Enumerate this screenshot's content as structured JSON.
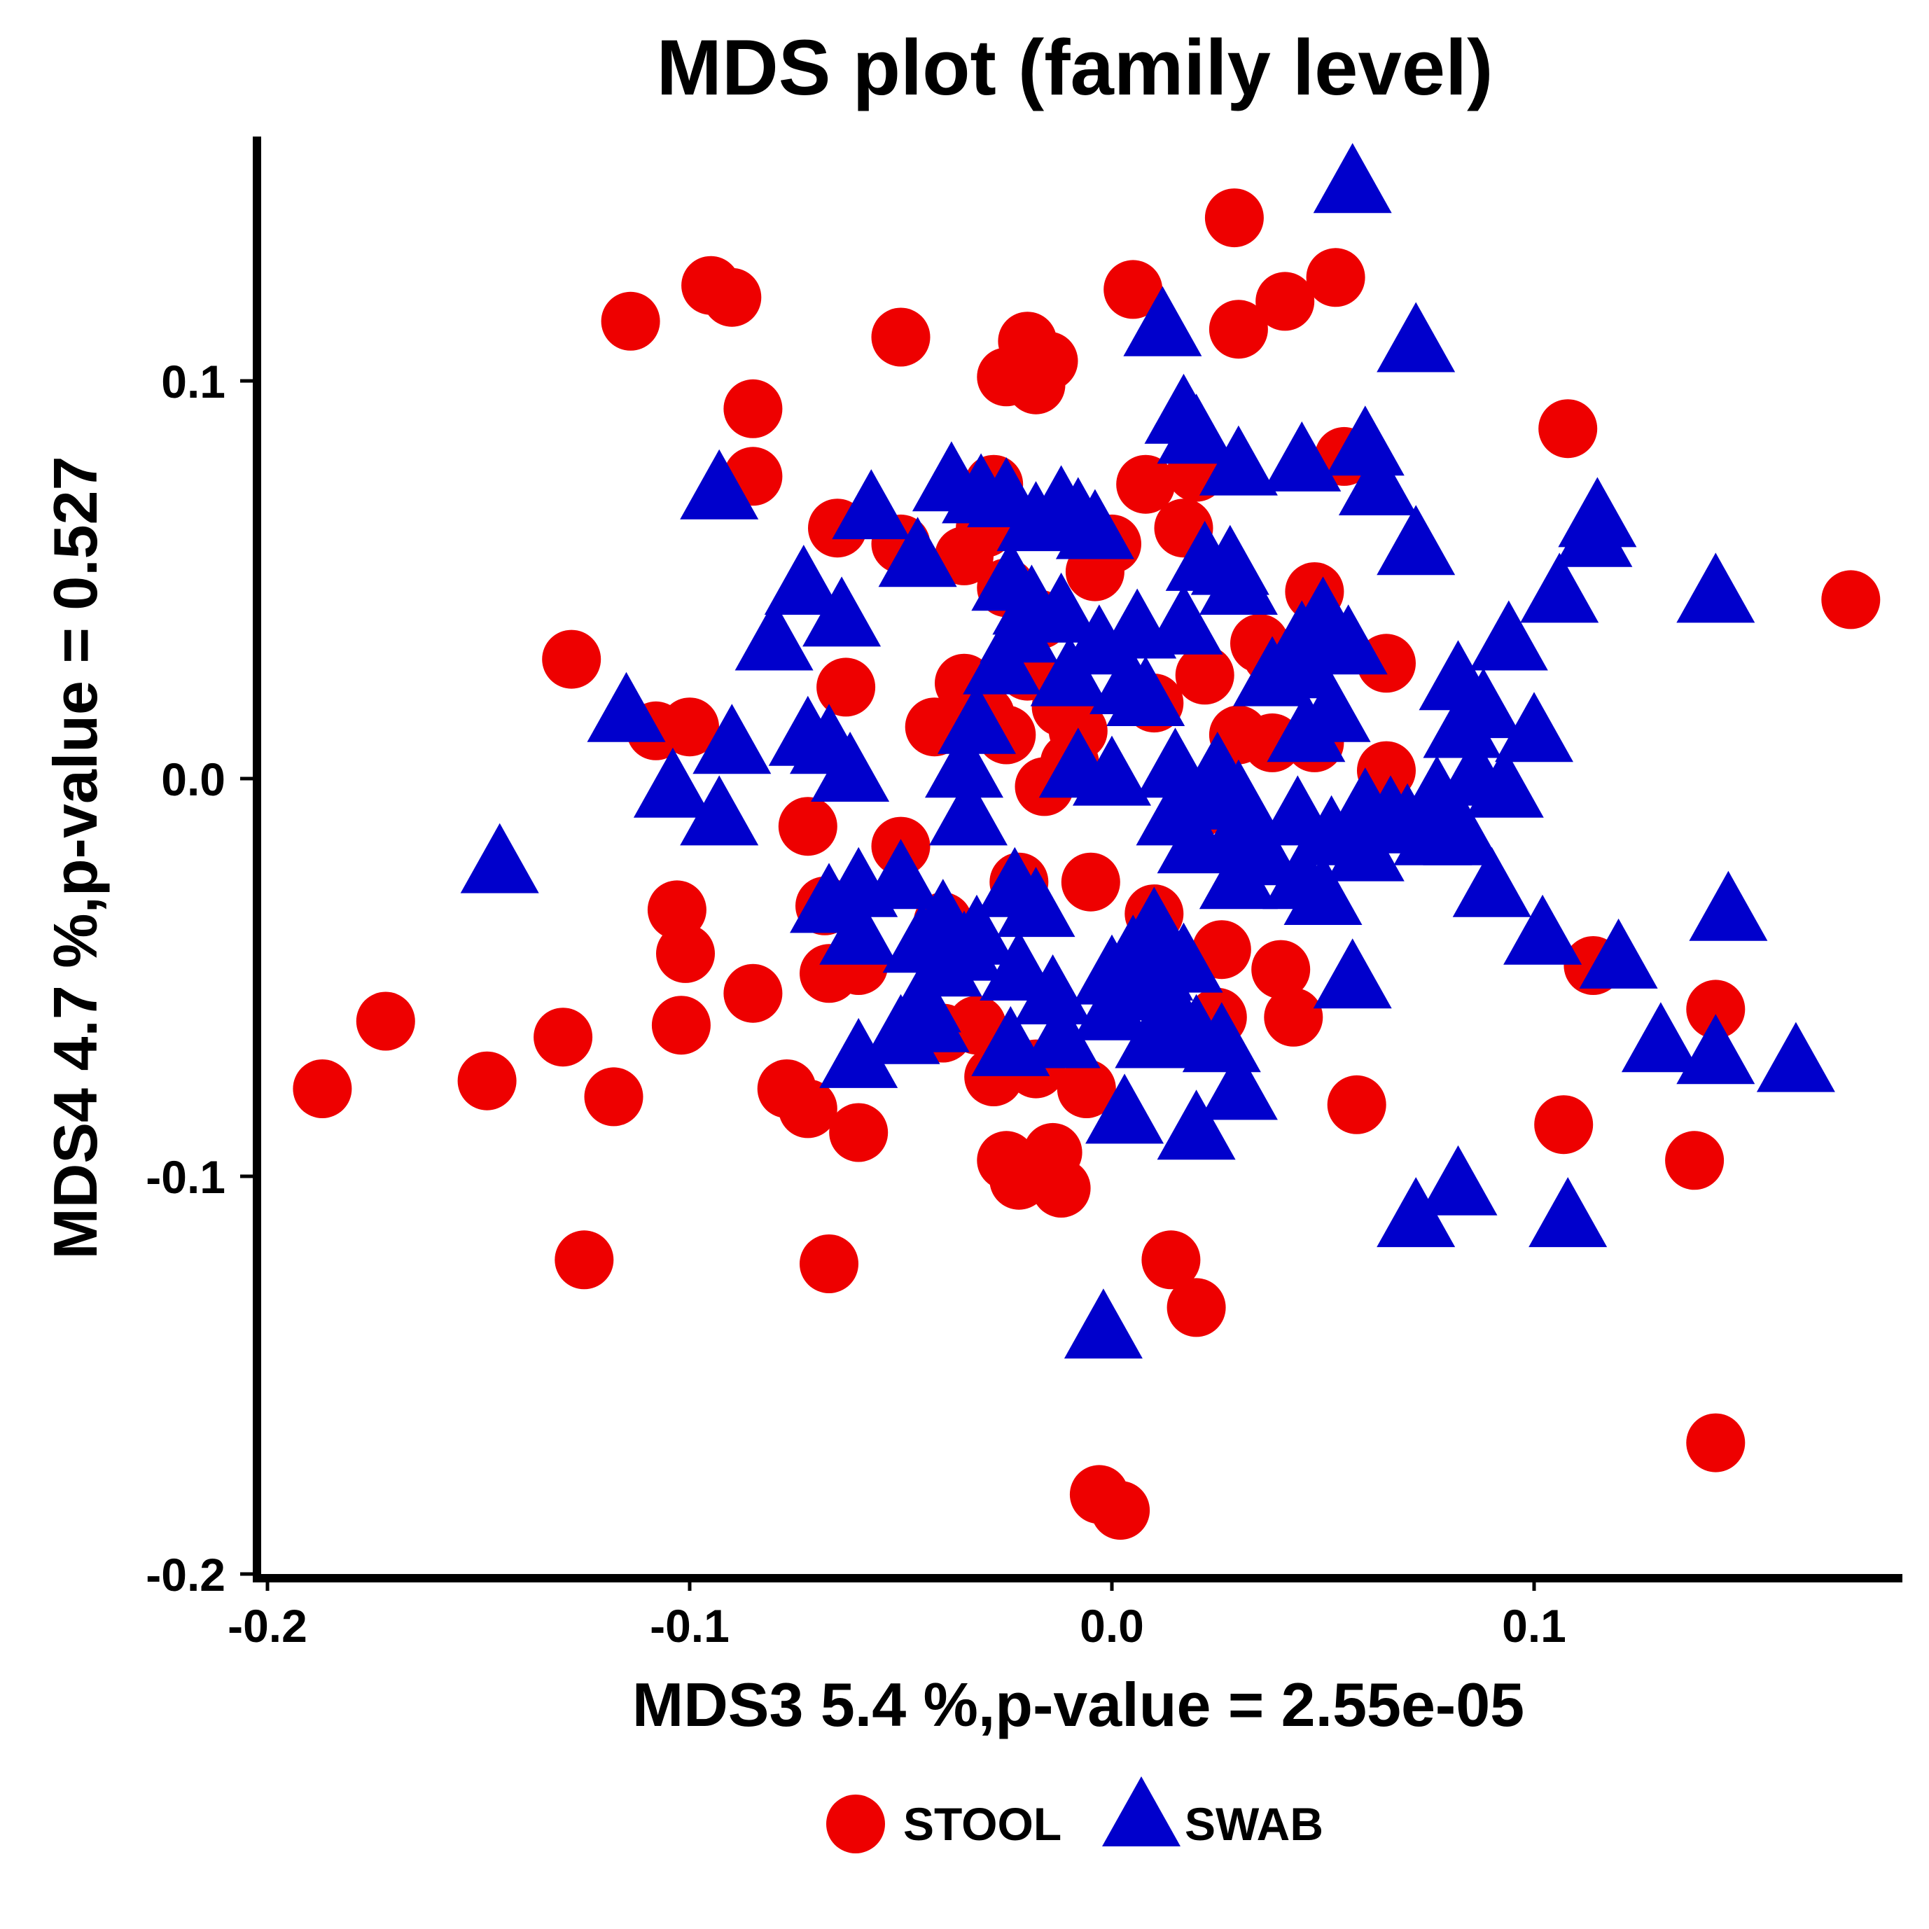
{
  "chart_data": {
    "type": "scatter",
    "title": "MDS plot (family level)",
    "xlabel": "MDS3   5.4 %,p-value =  2.55e-05",
    "ylabel": "MDS4   4.7 %,p-value =  0.527",
    "xlim": [
      -0.205,
      0.19
    ],
    "ylim": [
      -0.2,
      0.163
    ],
    "x_ticks": [
      {
        "value": -0.2,
        "label": "-0.2"
      },
      {
        "value": -0.1,
        "label": "-0.1"
      },
      {
        "value": 0.0,
        "label": "0.0"
      },
      {
        "value": 0.1,
        "label": "0.1"
      }
    ],
    "y_ticks": [
      {
        "value": -0.2,
        "label": "-0.2"
      },
      {
        "value": -0.1,
        "label": "-0.1"
      },
      {
        "value": 0.0,
        "label": "0.0"
      },
      {
        "value": 0.1,
        "label": "0.1"
      }
    ],
    "grid": false,
    "legend": {
      "position": "bottom"
    },
    "series": [
      {
        "name": "STOOL",
        "marker": "circle",
        "color": "#ee0000",
        "points": [
          [
            0.029,
            0.141
          ],
          [
            0.053,
            0.126
          ],
          [
            -0.095,
            0.124
          ],
          [
            -0.09,
            0.121
          ],
          [
            0.005,
            0.123
          ],
          [
            0.041,
            0.12
          ],
          [
            -0.114,
            0.115
          ],
          [
            0.03,
            0.113
          ],
          [
            -0.05,
            0.111
          ],
          [
            -0.02,
            0.11
          ],
          [
            -0.015,
            0.105
          ],
          [
            -0.025,
            0.101
          ],
          [
            -0.018,
            0.099
          ],
          [
            -0.085,
            0.093
          ],
          [
            0.108,
            0.088
          ],
          [
            0.055,
            0.081
          ],
          [
            -0.085,
            0.076
          ],
          [
            0.02,
            0.077
          ],
          [
            0.008,
            0.074
          ],
          [
            -0.028,
            0.074
          ],
          [
            -0.065,
            0.063
          ],
          [
            -0.03,
            0.063
          ],
          [
            -0.05,
            0.059
          ],
          [
            -0.035,
            0.056
          ],
          [
            0.0,
            0.059
          ],
          [
            0.017,
            0.063
          ],
          [
            -0.004,
            0.052
          ],
          [
            0.048,
            0.047
          ],
          [
            -0.025,
            0.048
          ],
          [
            0.175,
            0.045
          ],
          [
            -0.017,
            0.04
          ],
          [
            0.035,
            0.034
          ],
          [
            0.038,
            0.031
          ],
          [
            -0.128,
            0.03
          ],
          [
            0.065,
            0.029
          ],
          [
            -0.02,
            0.027
          ],
          [
            0.022,
            0.026
          ],
          [
            -0.063,
            0.023
          ],
          [
            -0.035,
            0.024
          ],
          [
            0.01,
            0.019
          ],
          [
            -0.012,
            0.018
          ],
          [
            -0.03,
            0.016
          ],
          [
            -0.025,
            0.011
          ],
          [
            -0.042,
            0.013
          ],
          [
            -0.1,
            0.013
          ],
          [
            -0.108,
            0.012
          ],
          [
            -0.008,
            0.012
          ],
          [
            0.03,
            0.011
          ],
          [
            0.038,
            0.009
          ],
          [
            0.048,
            0.009
          ],
          [
            -0.01,
            0.004
          ],
          [
            0.065,
            0.002
          ],
          [
            -0.016,
            -0.002
          ],
          [
            -0.072,
            -0.012
          ],
          [
            0.02,
            -0.008
          ],
          [
            -0.05,
            -0.017
          ],
          [
            -0.022,
            -0.026
          ],
          [
            -0.005,
            -0.026
          ],
          [
            -0.103,
            -0.033
          ],
          [
            -0.068,
            -0.032
          ],
          [
            0.01,
            -0.034
          ],
          [
            -0.04,
            -0.036
          ],
          [
            -0.101,
            -0.044
          ],
          [
            0.026,
            -0.043
          ],
          [
            -0.067,
            -0.049
          ],
          [
            -0.06,
            -0.047
          ],
          [
            0.04,
            -0.048
          ],
          [
            -0.085,
            -0.054
          ],
          [
            -0.172,
            -0.061
          ],
          [
            -0.102,
            -0.062
          ],
          [
            -0.13,
            -0.065
          ],
          [
            0.043,
            -0.06
          ],
          [
            0.025,
            -0.06
          ],
          [
            -0.04,
            -0.064
          ],
          [
            -0.032,
            -0.062
          ],
          [
            0.143,
            -0.058
          ],
          [
            0.114,
            -0.047
          ],
          [
            -0.148,
            -0.076
          ],
          [
            -0.187,
            -0.078
          ],
          [
            -0.077,
            -0.078
          ],
          [
            -0.018,
            -0.073
          ],
          [
            -0.028,
            -0.075
          ],
          [
            -0.006,
            -0.078
          ],
          [
            -0.118,
            -0.08
          ],
          [
            -0.072,
            -0.083
          ],
          [
            0.058,
            -0.082
          ],
          [
            -0.06,
            -0.089
          ],
          [
            0.107,
            -0.087
          ],
          [
            -0.025,
            -0.096
          ],
          [
            -0.014,
            -0.094
          ],
          [
            -0.022,
            -0.101
          ],
          [
            -0.012,
            -0.103
          ],
          [
            0.138,
            -0.096
          ],
          [
            -0.125,
            -0.121
          ],
          [
            -0.067,
            -0.122
          ],
          [
            0.014,
            -0.121
          ],
          [
            0.02,
            -0.133
          ],
          [
            0.143,
            -0.167
          ],
          [
            -0.003,
            -0.18
          ],
          [
            0.002,
            -0.184
          ]
        ]
      },
      {
        "name": "SWAB",
        "marker": "triangle",
        "color": "#0000cc",
        "points": [
          [
            0.057,
            0.151
          ],
          [
            0.012,
            0.115
          ],
          [
            0.072,
            0.111
          ],
          [
            0.017,
            0.093
          ],
          [
            0.02,
            0.088
          ],
          [
            0.03,
            0.08
          ],
          [
            0.045,
            0.081
          ],
          [
            0.06,
            0.085
          ],
          [
            0.063,
            0.075
          ],
          [
            -0.093,
            0.074
          ],
          [
            -0.038,
            0.076
          ],
          [
            -0.031,
            0.073
          ],
          [
            -0.057,
            0.069
          ],
          [
            -0.025,
            0.072
          ],
          [
            -0.012,
            0.07
          ],
          [
            -0.008,
            0.067
          ],
          [
            -0.018,
            0.066
          ],
          [
            -0.004,
            0.064
          ],
          [
            0.115,
            0.067
          ],
          [
            0.114,
            0.062
          ],
          [
            0.072,
            0.06
          ],
          [
            -0.046,
            0.057
          ],
          [
            0.022,
            0.056
          ],
          [
            0.028,
            0.055
          ],
          [
            -0.073,
            0.05
          ],
          [
            -0.024,
            0.051
          ],
          [
            0.03,
            0.05
          ],
          [
            -0.019,
            0.045
          ],
          [
            0.143,
            0.048
          ],
          [
            0.106,
            0.048
          ],
          [
            -0.064,
            0.042
          ],
          [
            -0.08,
            0.036
          ],
          [
            -0.012,
            0.043
          ],
          [
            -0.022,
            0.038
          ],
          [
            -0.003,
            0.035
          ],
          [
            0.006,
            0.039
          ],
          [
            0.017,
            0.04
          ],
          [
            0.05,
            0.042
          ],
          [
            0.045,
            0.036
          ],
          [
            0.056,
            0.035
          ],
          [
            0.094,
            0.036
          ],
          [
            -0.026,
            0.03
          ],
          [
            -0.01,
            0.027
          ],
          [
            0.004,
            0.025
          ],
          [
            0.008,
            0.022
          ],
          [
            0.038,
            0.027
          ],
          [
            0.046,
            0.029
          ],
          [
            0.082,
            0.026
          ],
          [
            0.088,
            0.019
          ],
          [
            -0.115,
            0.018
          ],
          [
            -0.072,
            0.012
          ],
          [
            -0.067,
            0.01
          ],
          [
            -0.032,
            0.015
          ],
          [
            0.046,
            0.013
          ],
          [
            0.052,
            0.018
          ],
          [
            0.083,
            0.014
          ],
          [
            0.1,
            0.013
          ],
          [
            -0.09,
            0.01
          ],
          [
            -0.062,
            0.003
          ],
          [
            -0.035,
            0.004
          ],
          [
            -0.008,
            0.004
          ],
          [
            0.0,
            0.002
          ],
          [
            0.015,
            0.004
          ],
          [
            0.025,
            0.003
          ],
          [
            0.086,
            0.002
          ],
          [
            -0.104,
            -0.001
          ],
          [
            0.022,
            -0.003
          ],
          [
            0.03,
            -0.004
          ],
          [
            0.077,
            -0.003
          ],
          [
            0.093,
            -0.001
          ],
          [
            -0.093,
            -0.008
          ],
          [
            -0.034,
            -0.008
          ],
          [
            0.015,
            -0.008
          ],
          [
            0.044,
            -0.008
          ],
          [
            0.06,
            -0.006
          ],
          [
            0.066,
            -0.008
          ],
          [
            0.03,
            -0.012
          ],
          [
            0.07,
            -0.01
          ],
          [
            0.052,
            -0.013
          ],
          [
            0.076,
            -0.013
          ],
          [
            0.083,
            -0.013
          ],
          [
            -0.145,
            -0.02
          ],
          [
            0.036,
            -0.018
          ],
          [
            0.02,
            -0.015
          ],
          [
            0.06,
            -0.017
          ],
          [
            0.03,
            -0.024
          ],
          [
            0.045,
            -0.024
          ],
          [
            -0.06,
            -0.026
          ],
          [
            -0.05,
            -0.024
          ],
          [
            -0.023,
            -0.026
          ],
          [
            0.09,
            -0.026
          ],
          [
            -0.067,
            -0.03
          ],
          [
            -0.018,
            -0.031
          ],
          [
            0.05,
            -0.028
          ],
          [
            -0.06,
            -0.038
          ],
          [
            -0.04,
            -0.034
          ],
          [
            -0.032,
            -0.038
          ],
          [
            0.01,
            -0.036
          ],
          [
            -0.045,
            -0.04
          ],
          [
            -0.035,
            -0.042
          ],
          [
            0.102,
            -0.038
          ],
          [
            0.146,
            -0.032
          ],
          [
            0.005,
            -0.043
          ],
          [
            0.017,
            -0.045
          ],
          [
            -0.04,
            -0.046
          ],
          [
            -0.022,
            -0.047
          ],
          [
            0.0,
            -0.048
          ],
          [
            0.01,
            -0.047
          ],
          [
            0.057,
            -0.049
          ],
          [
            0.12,
            -0.044
          ],
          [
            -0.045,
            -0.055
          ],
          [
            -0.014,
            -0.053
          ],
          [
            0.008,
            -0.052
          ],
          [
            -0.043,
            -0.06
          ],
          [
            0.0,
            -0.057
          ],
          [
            0.015,
            -0.058
          ],
          [
            -0.05,
            -0.063
          ],
          [
            -0.012,
            -0.064
          ],
          [
            0.01,
            -0.064
          ],
          [
            0.02,
            -0.063
          ],
          [
            0.026,
            -0.065
          ],
          [
            -0.024,
            -0.066
          ],
          [
            0.13,
            -0.065
          ],
          [
            0.143,
            -0.068
          ],
          [
            0.162,
            -0.07
          ],
          [
            -0.06,
            -0.069
          ],
          [
            0.03,
            -0.077
          ],
          [
            0.003,
            -0.083
          ],
          [
            0.02,
            -0.087
          ],
          [
            0.082,
            -0.101
          ],
          [
            0.072,
            -0.109
          ],
          [
            0.108,
            -0.109
          ],
          [
            -0.002,
            -0.137
          ]
        ]
      }
    ]
  }
}
